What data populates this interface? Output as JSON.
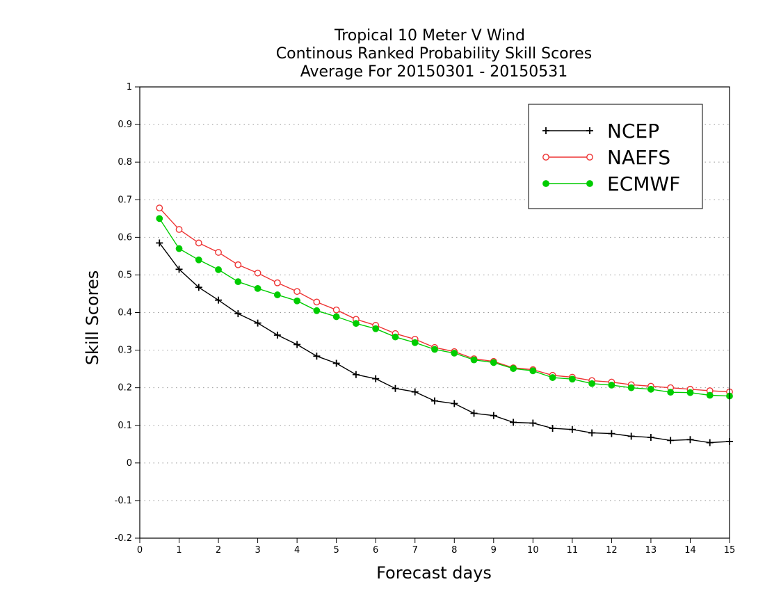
{
  "chart_data": {
    "type": "line",
    "title_lines": [
      "Tropical 10 Meter V Wind",
      "Continous Ranked Probability Skill Scores",
      "Average For 20150301 - 20150531"
    ],
    "xlabel": "Forecast days",
    "ylabel": "Skill Scores",
    "xlim": [
      0,
      15
    ],
    "ylim": [
      -0.2,
      1
    ],
    "x_ticks": [
      0,
      1,
      2,
      3,
      4,
      5,
      6,
      7,
      8,
      9,
      10,
      11,
      12,
      13,
      14,
      15
    ],
    "x_tick_labels": [
      "0",
      "1",
      "2",
      "3",
      "4",
      "5",
      "6",
      "7",
      "8",
      "9",
      "10",
      "11",
      "12",
      "13",
      "14",
      "15"
    ],
    "y_ticks": [
      -0.2,
      -0.1,
      0,
      0.1,
      0.2,
      0.3,
      0.4,
      0.5,
      0.6,
      0.7,
      0.8,
      0.9,
      1
    ],
    "y_tick_labels": [
      "-0.2",
      "-0.1",
      "0",
      "0.1",
      "0.2",
      "0.3",
      "0.4",
      "0.5",
      "0.6",
      "0.7",
      "0.8",
      "0.9",
      "1"
    ],
    "grid": "horizontal dotted",
    "legend_position": "top-right",
    "x": [
      0.5,
      1,
      1.5,
      2,
      2.5,
      3,
      3.5,
      4,
      4.5,
      5,
      5.5,
      6,
      6.5,
      7,
      7.5,
      8,
      8.5,
      9,
      9.5,
      10,
      10.5,
      11,
      11.5,
      12,
      12.5,
      13,
      13.5,
      14,
      14.5,
      15
    ],
    "series": [
      {
        "name": "NCEP",
        "color": "#000000",
        "marker": "plus",
        "values": [
          0.585,
          0.515,
          0.467,
          0.433,
          0.397,
          0.372,
          0.34,
          0.315,
          0.284,
          0.265,
          0.235,
          0.224,
          0.198,
          0.189,
          0.165,
          0.158,
          0.132,
          0.126,
          0.108,
          0.106,
          0.092,
          0.089,
          0.08,
          0.078,
          0.071,
          0.068,
          0.06,
          0.062,
          0.054,
          0.057
        ]
      },
      {
        "name": "NAEFS",
        "color": "#ee3333",
        "marker": "open-circle",
        "values": [
          0.678,
          0.621,
          0.585,
          0.56,
          0.527,
          0.505,
          0.479,
          0.456,
          0.428,
          0.407,
          0.382,
          0.366,
          0.344,
          0.329,
          0.307,
          0.296,
          0.277,
          0.27,
          0.253,
          0.248,
          0.233,
          0.228,
          0.219,
          0.215,
          0.208,
          0.204,
          0.2,
          0.196,
          0.192,
          0.189
        ]
      },
      {
        "name": "ECMWF",
        "color": "#00cc00",
        "marker": "filled-circle",
        "values": [
          0.65,
          0.57,
          0.54,
          0.514,
          0.482,
          0.464,
          0.447,
          0.431,
          0.405,
          0.389,
          0.371,
          0.357,
          0.335,
          0.32,
          0.302,
          0.292,
          0.274,
          0.267,
          0.251,
          0.245,
          0.227,
          0.223,
          0.211,
          0.207,
          0.2,
          0.196,
          0.188,
          0.187,
          0.18,
          0.178
        ]
      }
    ]
  }
}
